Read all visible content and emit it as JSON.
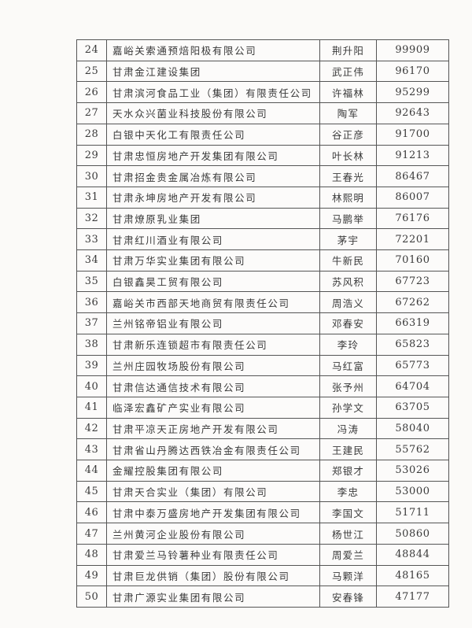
{
  "page": {
    "kind": "scanned-ranking-table",
    "background_color": "#fbfaf8",
    "border_color": "#555555",
    "text_color": "#3a3a3a"
  },
  "table": {
    "columns": [
      "rank",
      "company",
      "person",
      "value"
    ],
    "rows": [
      {
        "rank": "24",
        "company": "嘉峪关索通预焙阳极有限公司",
        "person": "荆升阳",
        "value": "99909"
      },
      {
        "rank": "25",
        "company": "甘肃金江建设集团",
        "person": "武正伟",
        "value": "96170"
      },
      {
        "rank": "26",
        "company": "甘肃滨河食品工业（集团）有限责任公司",
        "person": "许福林",
        "value": "95299"
      },
      {
        "rank": "27",
        "company": "天水众兴菌业科技股份有限公司",
        "person": "陶军",
        "value": "92643"
      },
      {
        "rank": "28",
        "company": "白银中天化工有限责任公司",
        "person": "谷正彦",
        "value": "91700"
      },
      {
        "rank": "29",
        "company": "甘肃忠恒房地产开发集团有限公司",
        "person": "叶长林",
        "value": "91213"
      },
      {
        "rank": "30",
        "company": "甘肃招金贵金属冶炼有限公司",
        "person": "王春光",
        "value": "86467"
      },
      {
        "rank": "31",
        "company": "甘肃永坤房地产开发有限公司",
        "person": "林熙明",
        "value": "86007"
      },
      {
        "rank": "32",
        "company": "甘肃燎原乳业集团",
        "person": "马鹏举",
        "value": "76176"
      },
      {
        "rank": "33",
        "company": "甘肃红川酒业有限公司",
        "person": "茅宇",
        "value": "72201"
      },
      {
        "rank": "34",
        "company": "甘肃万华实业集团有限公司",
        "person": "牛新民",
        "value": "70160"
      },
      {
        "rank": "35",
        "company": "白银鑫昊工贸有限公司",
        "person": "苏风积",
        "value": "67723"
      },
      {
        "rank": "36",
        "company": "嘉峪关市西部天地商贸有限责任公司",
        "person": "周浩义",
        "value": "67262"
      },
      {
        "rank": "37",
        "company": "兰州铭帝铝业有限公司",
        "person": "邓春安",
        "value": "66319"
      },
      {
        "rank": "38",
        "company": "甘肃新乐连锁超市有限责任公司",
        "person": "李玲",
        "value": "65823"
      },
      {
        "rank": "39",
        "company": "兰州庄园牧场股份有限公司",
        "person": "马红富",
        "value": "65773"
      },
      {
        "rank": "40",
        "company": "甘肃信达通信技术有限公司",
        "person": "张予州",
        "value": "64704"
      },
      {
        "rank": "41",
        "company": "临泽宏鑫矿产实业有限公司",
        "person": "孙学文",
        "value": "63705"
      },
      {
        "rank": "42",
        "company": "甘肃平凉天正房地产开发有限公司",
        "person": "冯涛",
        "value": "58040"
      },
      {
        "rank": "43",
        "company": "甘肃省山丹腾达西铁冶金有限责任公司",
        "person": "王建民",
        "value": "55762"
      },
      {
        "rank": "44",
        "company": "金耀控股集团有限公司",
        "person": "郑银才",
        "value": "53026"
      },
      {
        "rank": "45",
        "company": "甘肃天合实业（集团）有限公司",
        "person": "李忠",
        "value": "53000"
      },
      {
        "rank": "46",
        "company": "甘肃中泰万盛房地产开发集团有限公司",
        "person": "李国文",
        "value": "51711"
      },
      {
        "rank": "47",
        "company": "兰州黄河企业股份有限公司",
        "person": "杨世江",
        "value": "50860"
      },
      {
        "rank": "48",
        "company": "甘肃爱兰马铃薯种业有限责任公司",
        "person": "周爱兰",
        "value": "48844"
      },
      {
        "rank": "49",
        "company": "甘肃巨龙供销（集团）股份有限公司",
        "person": "马颗洋",
        "value": "48165"
      },
      {
        "rank": "50",
        "company": "甘肃广源实业集团有限公司",
        "person": "安春锋",
        "value": "47177"
      }
    ]
  }
}
